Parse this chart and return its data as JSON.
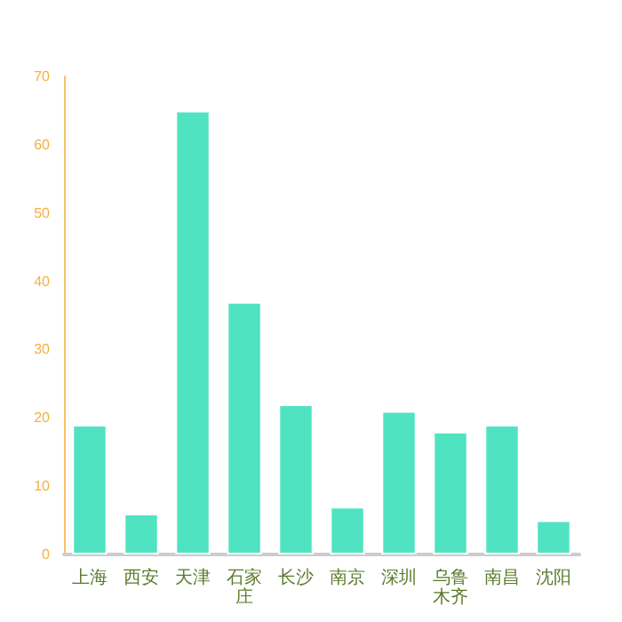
{
  "chart_data": {
    "type": "bar",
    "categories": [
      "上海",
      "西安",
      "天津",
      "石家庄",
      "长沙",
      "南京",
      "深圳",
      "乌鲁木齐",
      "南昌",
      "沈阳"
    ],
    "values": [
      19,
      6,
      65,
      37,
      22,
      7,
      21,
      18,
      19,
      5
    ],
    "color": "#4fe3c1",
    "ylim": [
      0,
      70
    ],
    "yticks": [
      0,
      10,
      20,
      30,
      40,
      50,
      60,
      70
    ],
    "grid": false
  }
}
